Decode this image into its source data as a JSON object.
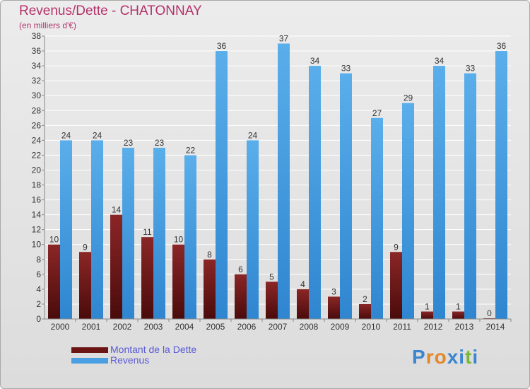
{
  "title": "Revenus/Dette - CHATONNAY",
  "subtitle": "(en milliers d'€)",
  "colors": {
    "dette": "#7a1a1a",
    "revenus": "#4a9fe2",
    "title": "#b4336b",
    "legend_text": "#5b5bd6"
  },
  "chart_data": {
    "type": "bar",
    "title": "Revenus/Dette - CHATONNAY",
    "ylabel": "(en milliers d'€)",
    "categories": [
      "2000",
      "2001",
      "2002",
      "2003",
      "2004",
      "2005",
      "2006",
      "2007",
      "2008",
      "2009",
      "2010",
      "2011",
      "2012",
      "2013",
      "2014"
    ],
    "series": [
      {
        "name": "Montant de la Dette",
        "values": [
          10,
          9,
          14,
          11,
          10,
          8,
          6,
          5,
          4,
          3,
          2,
          9,
          1,
          1,
          0
        ]
      },
      {
        "name": "Revenus",
        "values": [
          24,
          24,
          23,
          23,
          22,
          36,
          24,
          37,
          34,
          33,
          27,
          29,
          34,
          33,
          36
        ]
      }
    ],
    "ylim": [
      0,
      38
    ],
    "yticks": [
      0,
      2,
      4,
      6,
      8,
      10,
      12,
      14,
      16,
      18,
      20,
      22,
      24,
      26,
      28,
      30,
      32,
      34,
      36,
      38
    ],
    "grid": true,
    "legend_position": "bottom-left"
  },
  "legend": {
    "items": [
      {
        "label": "Montant de la Dette",
        "color": "#6b1515"
      },
      {
        "label": "Revenus",
        "color": "#4a9fe2"
      }
    ]
  },
  "logo": {
    "text": "Proxiti",
    "letter_colors": [
      "#3a86d0",
      "#e0882a",
      "#e0882a",
      "#3a86d0",
      "#3a86d0",
      "#7ab83a",
      "#3a86d0"
    ]
  }
}
